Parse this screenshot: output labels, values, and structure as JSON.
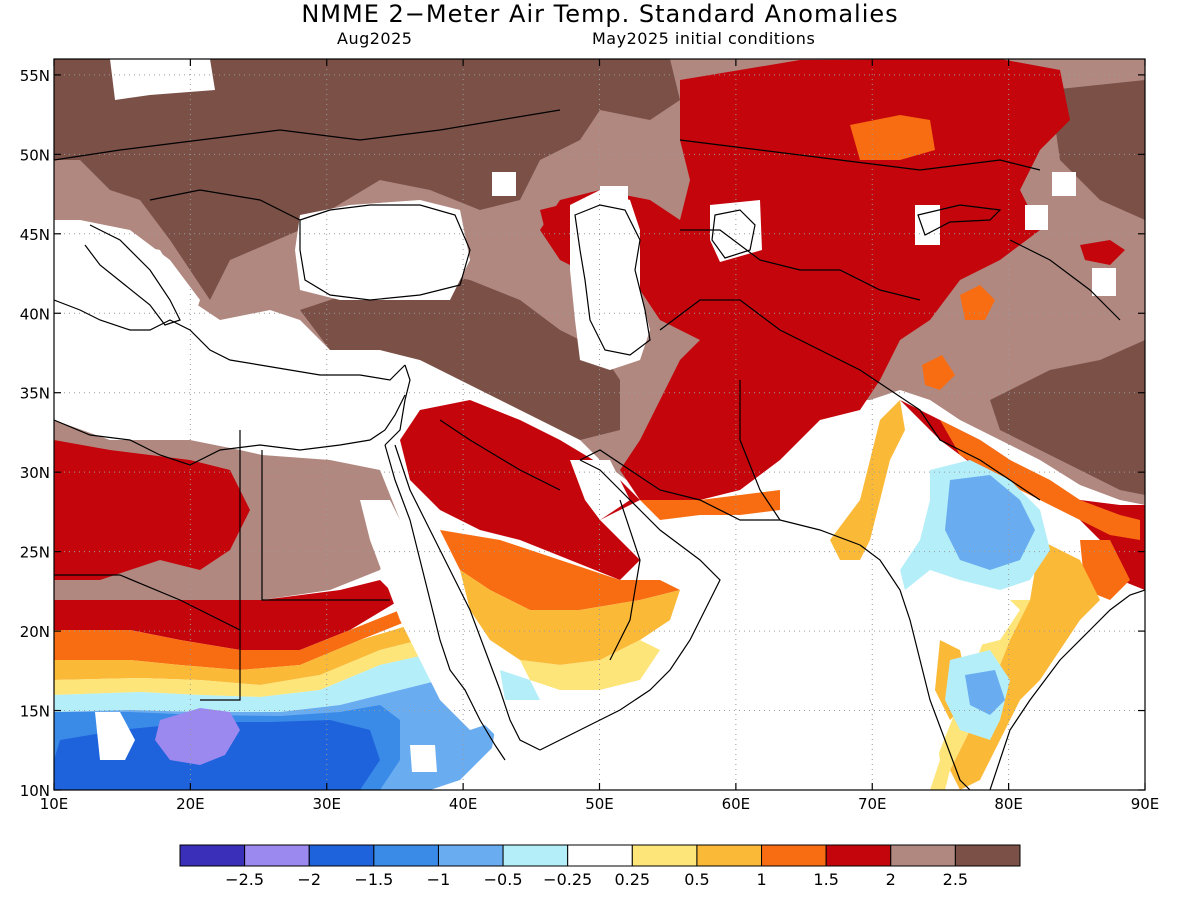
{
  "title": "NMME 2−Meter Air Temp. Standard Anomalies",
  "subtitle_left": "Aug2025",
  "subtitle_right": "May2025 initial conditions",
  "map": {
    "lon_range": [
      10,
      90
    ],
    "lat_range": [
      10,
      56
    ],
    "lon_ticks": [
      {
        "v": 10,
        "label": "10E"
      },
      {
        "v": 20,
        "label": "20E"
      },
      {
        "v": 30,
        "label": "30E"
      },
      {
        "v": 40,
        "label": "40E"
      },
      {
        "v": 50,
        "label": "50E"
      },
      {
        "v": 60,
        "label": "60E"
      },
      {
        "v": 70,
        "label": "70E"
      },
      {
        "v": 80,
        "label": "80E"
      },
      {
        "v": 90,
        "label": "90E"
      }
    ],
    "lat_ticks": [
      {
        "v": 10,
        "label": "10N"
      },
      {
        "v": 15,
        "label": "15N"
      },
      {
        "v": 20,
        "label": "20N"
      },
      {
        "v": 25,
        "label": "25N"
      },
      {
        "v": 30,
        "label": "30N"
      },
      {
        "v": 35,
        "label": "35N"
      },
      {
        "v": 40,
        "label": "40N"
      },
      {
        "v": 45,
        "label": "45N"
      },
      {
        "v": 50,
        "label": "50N"
      },
      {
        "v": 55,
        "label": "55N"
      }
    ],
    "grid": "dotted"
  },
  "colorbar": {
    "colors": [
      "#3a2fb8",
      "#9b89f0",
      "#1f63dc",
      "#3a8be8",
      "#6aacf0",
      "#b4eef8",
      "#ffffff",
      "#fde57a",
      "#fbb938",
      "#f86d12",
      "#c4060c",
      "#b08880",
      "#7a5047"
    ],
    "labels": [
      "−2.5",
      "−2",
      "−1.5",
      "−1",
      "−0.5",
      "−0.25",
      "0.25",
      "0.5",
      "1",
      "1.5",
      "2",
      "2.5"
    ]
  }
}
